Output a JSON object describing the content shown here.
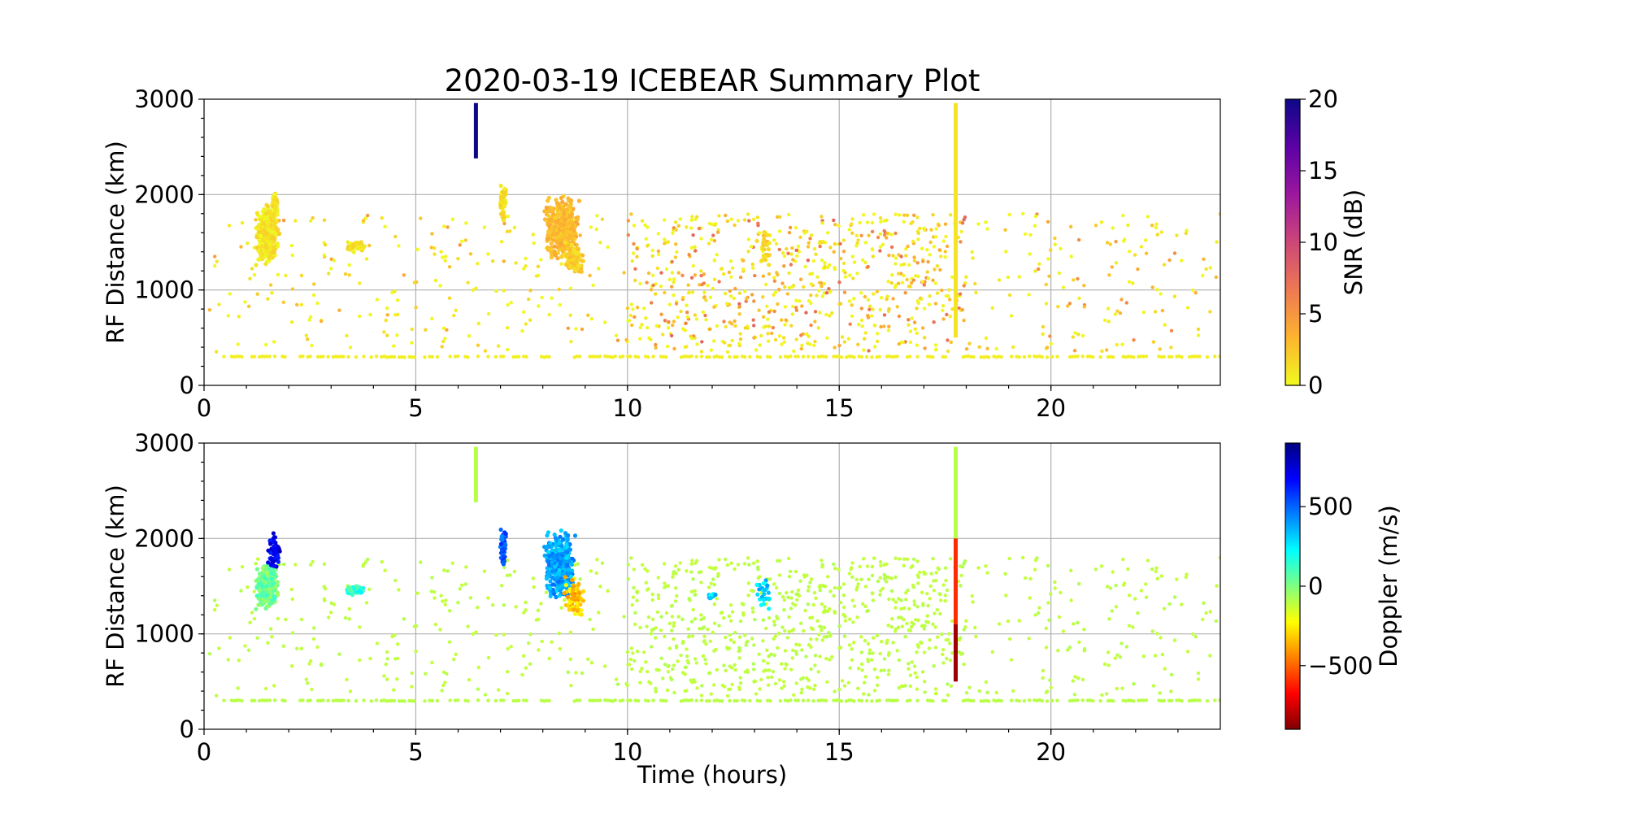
{
  "chart_data": {
    "type": "scatter",
    "title": "2020-03-19 ICEBEAR Summary Plot",
    "xlabel": "Time (hours)",
    "xlim": [
      0,
      24
    ],
    "x_ticks": [
      "0",
      "5",
      "10",
      "15",
      "20"
    ],
    "x_tick_values": [
      0,
      5,
      10,
      15,
      20
    ],
    "grid": true,
    "panels": [
      {
        "name": "snr-panel",
        "ylabel": "RF Distance (km)",
        "ylim": [
          0,
          3000
        ],
        "y_ticks": [
          "0",
          "1000",
          "2000",
          "3000"
        ],
        "y_tick_values": [
          0,
          1000,
          2000,
          3000
        ],
        "colorbar": {
          "label": "SNR (dB)",
          "range": [
            0,
            20
          ],
          "ticks": [
            "0",
            "5",
            "10",
            "15",
            "20"
          ],
          "tick_values": [
            0,
            5,
            10,
            15,
            20
          ],
          "colormap": "plasma_r",
          "stops": [
            "#f0f921",
            "#fdb42f",
            "#ed7953",
            "#cc4778",
            "#9c179e",
            "#5c01a6",
            "#0d0887"
          ]
        },
        "clusters": [
          {
            "x": [
              1.2,
              1.8
            ],
            "y": [
              1250,
              1900
            ],
            "count": 320,
            "value": 1
          },
          {
            "x": [
              1.6,
              1.75
            ],
            "y": [
              1700,
              2050
            ],
            "count": 40,
            "value": 1
          },
          {
            "x": [
              3.3,
              3.9
            ],
            "y": [
              1380,
              1520
            ],
            "count": 45,
            "value": 1
          },
          {
            "x": [
              6.98,
              7.15
            ],
            "y": [
              1700,
              2120
            ],
            "count": 50,
            "value": 1
          },
          {
            "x": [
              8.0,
              8.9
            ],
            "y": [
              1300,
              2000
            ],
            "count": 380,
            "value": 3
          },
          {
            "x": [
              8.5,
              9.0
            ],
            "y": [
              1150,
              1500
            ],
            "count": 80,
            "value": 2
          },
          {
            "x": [
              13.0,
              13.4
            ],
            "y": [
              1250,
              1650
            ],
            "count": 25,
            "value": 2
          }
        ],
        "streaks": [
          {
            "x": 6.42,
            "y": [
              2380,
              2960
            ],
            "value": 20
          },
          {
            "x": 17.75,
            "y": [
              500,
              2960
            ],
            "value": 1
          }
        ],
        "floor_line": {
          "y": 300,
          "value": 0.5
        },
        "scatter_ranges": [
          {
            "x": [
              0,
              10
            ],
            "y": [
              350,
              1800
            ],
            "count": 220,
            "value_range": [
              0,
              5
            ]
          },
          {
            "x": [
              10,
              18
            ],
            "y": [
              350,
              1800
            ],
            "count": 700,
            "value_range": [
              0,
              8
            ]
          },
          {
            "x": [
              18,
              24
            ],
            "y": [
              350,
              1800
            ],
            "count": 140,
            "value_range": [
              0,
              6
            ]
          }
        ]
      },
      {
        "name": "doppler-panel",
        "ylabel": "RF Distance (km)",
        "ylim": [
          0,
          3000
        ],
        "y_ticks": [
          "0",
          "1000",
          "2000",
          "3000"
        ],
        "y_tick_values": [
          0,
          1000,
          2000,
          3000
        ],
        "colorbar": {
          "label": "Doppler (m/s)",
          "range": [
            -900,
            900
          ],
          "ticks": [
            "−500",
            "0",
            "500"
          ],
          "tick_values": [
            -500,
            0,
            500
          ],
          "colormap": "jet_r",
          "stops": [
            "#800000",
            "#ff0000",
            "#ff8000",
            "#ffff00",
            "#80ff80",
            "#00ffff",
            "#0080ff",
            "#0000ff",
            "#000080"
          ]
        },
        "clusters": [
          {
            "x": [
              1.2,
              1.8
            ],
            "y": [
              1250,
              1750
            ],
            "count": 280,
            "value": 30
          },
          {
            "x": [
              1.5,
              1.8
            ],
            "y": [
              1650,
              2060
            ],
            "count": 60,
            "value": 700
          },
          {
            "x": [
              3.3,
              3.9
            ],
            "y": [
              1380,
              1520
            ],
            "count": 45,
            "value": 150
          },
          {
            "x": [
              6.98,
              7.15
            ],
            "y": [
              1700,
              2120
            ],
            "count": 50,
            "value": 520
          },
          {
            "x": [
              8.0,
              8.8
            ],
            "y": [
              1350,
              2100
            ],
            "count": 360,
            "value": 380
          },
          {
            "x": [
              8.5,
              9.0
            ],
            "y": [
              1150,
              1600
            ],
            "count": 90,
            "value": -320
          },
          {
            "x": [
              11.9,
              12.1
            ],
            "y": [
              1350,
              1450
            ],
            "count": 12,
            "value": 300
          },
          {
            "x": [
              13.0,
              13.4
            ],
            "y": [
              1250,
              1650
            ],
            "count": 25,
            "value": 300
          }
        ],
        "streaks": [
          {
            "x": 6.42,
            "y": [
              2380,
              2960
            ],
            "value": -100
          },
          {
            "x": 17.75,
            "y": [
              2000,
              2960
            ],
            "value": -100
          },
          {
            "x": 17.75,
            "y": [
              1100,
              2000
            ],
            "value": -600
          },
          {
            "x": 17.75,
            "y": [
              500,
              1100
            ],
            "value": -850
          }
        ],
        "floor_line": {
          "y": 300,
          "value": -100
        },
        "scatter_ranges": [
          {
            "x": [
              0,
              10
            ],
            "y": [
              350,
              1800
            ],
            "count": 220,
            "value_range": [
              -120,
              -80
            ]
          },
          {
            "x": [
              10,
              18
            ],
            "y": [
              350,
              1800
            ],
            "count": 700,
            "value_range": [
              -120,
              -80
            ]
          },
          {
            "x": [
              18,
              24
            ],
            "y": [
              350,
              1800
            ],
            "count": 140,
            "value_range": [
              -120,
              -80
            ]
          }
        ]
      }
    ]
  }
}
